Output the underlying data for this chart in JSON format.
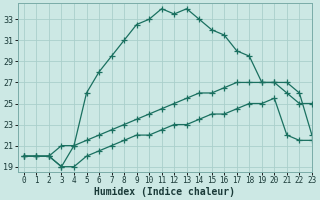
{
  "xlabel": "Humidex (Indice chaleur)",
  "ylabel": "",
  "background_color": "#cce8e4",
  "grid_color": "#aacfcb",
  "line_color": "#1a7060",
  "xlim": [
    -0.5,
    23
  ],
  "ylim": [
    18.5,
    34.5
  ],
  "xticks": [
    0,
    1,
    2,
    3,
    4,
    5,
    6,
    7,
    8,
    9,
    10,
    11,
    12,
    13,
    14,
    15,
    16,
    17,
    18,
    19,
    20,
    21,
    22,
    23
  ],
  "yticks": [
    19,
    21,
    23,
    25,
    27,
    29,
    31,
    33
  ],
  "series1_x": [
    0,
    1,
    2,
    3,
    4,
    5,
    6,
    7,
    8,
    9,
    10,
    11,
    12,
    13,
    14,
    15,
    16,
    17,
    18,
    19,
    20,
    21,
    22,
    23
  ],
  "series1_y": [
    20.0,
    20.0,
    20.0,
    19.0,
    21.0,
    26.0,
    28.0,
    29.5,
    31.0,
    32.5,
    33.0,
    34.0,
    33.5,
    34.0,
    33.0,
    32.0,
    31.5,
    30.0,
    29.5,
    27.0,
    27.0,
    26.0,
    25.0,
    25.0
  ],
  "series2_x": [
    0,
    1,
    2,
    3,
    4,
    5,
    6,
    7,
    8,
    9,
    10,
    11,
    12,
    13,
    14,
    15,
    16,
    17,
    18,
    19,
    20,
    21,
    22,
    23
  ],
  "series2_y": [
    20.0,
    20.0,
    20.0,
    21.0,
    21.0,
    21.5,
    22.0,
    22.5,
    23.0,
    23.5,
    24.0,
    24.5,
    25.0,
    25.5,
    26.0,
    26.0,
    26.5,
    27.0,
    27.0,
    27.0,
    27.0,
    27.0,
    26.0,
    22.0
  ],
  "series3_x": [
    0,
    1,
    2,
    3,
    4,
    5,
    6,
    7,
    8,
    9,
    10,
    11,
    12,
    13,
    14,
    15,
    16,
    17,
    18,
    19,
    20,
    21,
    22,
    23
  ],
  "series3_y": [
    20.0,
    20.0,
    20.0,
    19.0,
    19.0,
    20.0,
    20.5,
    21.0,
    21.5,
    22.0,
    22.0,
    22.5,
    23.0,
    23.0,
    23.5,
    24.0,
    24.0,
    24.5,
    25.0,
    25.0,
    25.5,
    22.0,
    21.5,
    21.5
  ]
}
